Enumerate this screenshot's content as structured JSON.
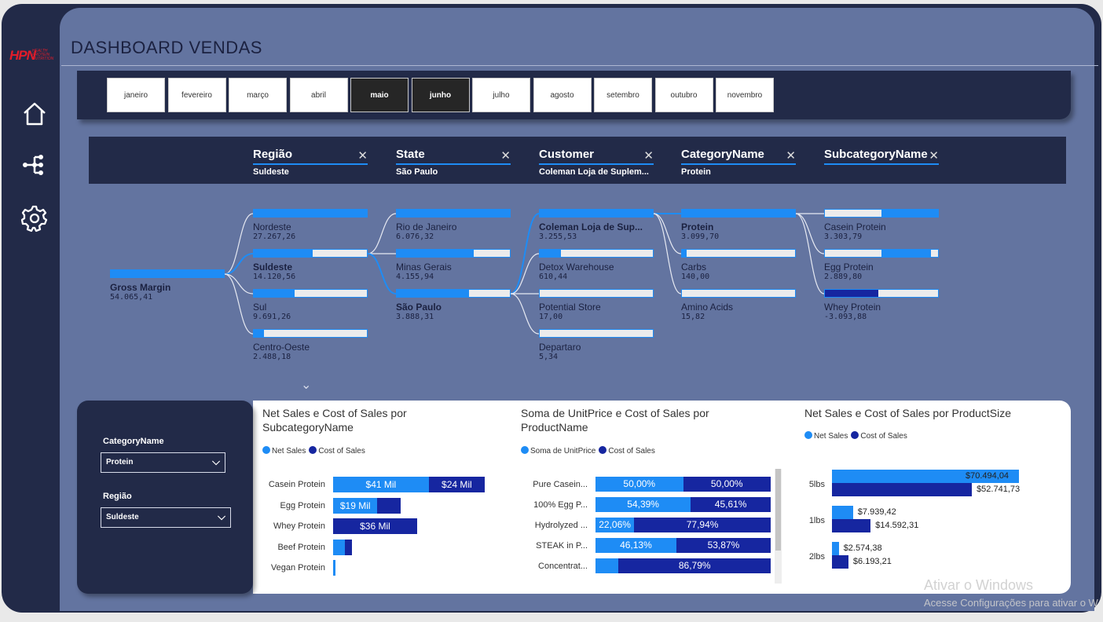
{
  "brand": {
    "logo_text": "HPN",
    "logo_sub": "HEALTH PROTEIN NUTRITION"
  },
  "title": "DASHBOARD VENDAS",
  "nav": [
    {
      "name": "home-icon"
    },
    {
      "name": "decomposition-tree-icon"
    },
    {
      "name": "gear-icon"
    }
  ],
  "months": [
    {
      "label": "janeiro",
      "selected": false
    },
    {
      "label": "fevereiro",
      "selected": false
    },
    {
      "label": "março",
      "selected": false
    },
    {
      "label": "abril",
      "selected": false
    },
    {
      "label": "maio",
      "selected": true
    },
    {
      "label": "junho",
      "selected": true
    },
    {
      "label": "julho",
      "selected": false
    },
    {
      "label": "agosto",
      "selected": false
    },
    {
      "label": "setembro",
      "selected": false
    },
    {
      "label": "outubro",
      "selected": false
    },
    {
      "label": "novembro",
      "selected": false
    }
  ],
  "tree": {
    "root": {
      "label": "Gross Margin",
      "value": "54.065,41",
      "fill": 1.0
    },
    "levels": [
      {
        "name": "Região",
        "value": "Suldeste",
        "nodes": [
          {
            "label": "Nordeste",
            "value": "27.267,26",
            "fill": 1.0,
            "selected": false
          },
          {
            "label": "Suldeste",
            "value": "14.120,56",
            "fill": 0.52,
            "selected": true
          },
          {
            "label": "Sul",
            "value": "9.691,26",
            "fill": 0.36,
            "selected": false
          },
          {
            "label": "Centro-Oeste",
            "value": "2.488,18",
            "fill": 0.09,
            "selected": false
          }
        ]
      },
      {
        "name": "State",
        "value": "São Paulo",
        "nodes": [
          {
            "label": "Rio de Janeiro",
            "value": "6.076,32",
            "fill": 1.0,
            "selected": false
          },
          {
            "label": "Minas Gerais",
            "value": "4.155,94",
            "fill": 0.68,
            "selected": false
          },
          {
            "label": "São Paulo",
            "value": "3.888,31",
            "fill": 0.64,
            "selected": true
          }
        ]
      },
      {
        "name": "Customer",
        "value": "Coleman Loja de Suplem...",
        "nodes": [
          {
            "label": "Coleman Loja de Sup...",
            "value": "3.255,53",
            "fill": 1.0,
            "selected": true
          },
          {
            "label": "Detox Warehouse",
            "value": "610,44",
            "fill": 0.19,
            "selected": false
          },
          {
            "label": "Potential Store",
            "value": "17,00",
            "fill": 0.0,
            "selected": false
          },
          {
            "label": "Departaro",
            "value": "5,34",
            "fill": 0.0,
            "selected": false
          }
        ]
      },
      {
        "name": "CategoryName",
        "value": "Protein",
        "nodes": [
          {
            "label": "Protein",
            "value": "3.099,70",
            "fill": 1.0,
            "selected": true
          },
          {
            "label": "Carbs",
            "value": "140,00",
            "fill": 0.04,
            "selected": false
          },
          {
            "label": "Amino Acids",
            "value": "15,82",
            "fill": 0.0,
            "selected": false
          }
        ]
      },
      {
        "name": "SubcategoryName",
        "value": "",
        "nodes": [
          {
            "label": "Casein Protein",
            "value": "3.303,79",
            "fill": 0.5,
            "selected": false,
            "negative": false
          },
          {
            "label": "Egg Protein",
            "value": "2.889,80",
            "fill": 0.44,
            "selected": false,
            "negative": false
          },
          {
            "label": "Whey Protein",
            "value": "-3.093,88",
            "fill": 0.47,
            "selected": false,
            "negative": true
          }
        ]
      }
    ],
    "expand_icon": "chevron-down-icon"
  },
  "filters": [
    {
      "label": "CategoryName",
      "value": "Protein"
    },
    {
      "label": "Região",
      "value": "Suldeste"
    }
  ],
  "colors": {
    "net": "#1e8cf5",
    "cost": "#1626a0",
    "panel": "#222a48",
    "bg": "#6374a0"
  },
  "chart_data": [
    {
      "type": "bar",
      "orientation": "horizontal-stacked",
      "title": "Net Sales e Cost of Sales por SubcategoryName",
      "legend": [
        "Net Sales",
        "Cost of Sales"
      ],
      "categories": [
        "Casein Protein",
        "Egg Protein",
        "Whey Protein",
        "Beef Protein",
        "Vegan Protein"
      ],
      "series": [
        {
          "name": "Net Sales",
          "values": [
            41,
            19,
            0,
            5,
            1
          ],
          "labels": [
            "$41 Mil",
            "$19 Mil",
            "",
            "",
            ""
          ]
        },
        {
          "name": "Cost of Sales",
          "values": [
            24,
            10,
            36,
            3,
            0
          ],
          "labels": [
            "$24 Mil",
            "",
            "$36 Mil",
            "",
            ""
          ]
        }
      ]
    },
    {
      "type": "bar",
      "orientation": "horizontal-100-stacked",
      "title": "Soma de UnitPrice e Cost of Sales por ProductName",
      "legend": [
        "Soma de UnitPrice",
        "Cost of Sales"
      ],
      "categories": [
        "Pure Casein...",
        "100% Egg P...",
        "Hydrolyzed ...",
        "STEAK in P...",
        "Concentrat..."
      ],
      "series": [
        {
          "name": "Soma de UnitPrice",
          "values": [
            50.0,
            54.39,
            22.06,
            46.13,
            13.21
          ],
          "labels": [
            "50,00%",
            "54,39%",
            "22,06%",
            "46,13%",
            ""
          ]
        },
        {
          "name": "Cost of Sales",
          "values": [
            50.0,
            45.61,
            77.94,
            53.87,
            86.79
          ],
          "labels": [
            "50,00%",
            "45,61%",
            "77,94%",
            "53,87%",
            "86,79%"
          ]
        }
      ]
    },
    {
      "type": "bar",
      "orientation": "horizontal-clustered",
      "title": "Net Sales e Cost of Sales por ProductSize",
      "legend": [
        "Net Sales",
        "Cost of Sales"
      ],
      "categories": [
        "5lbs",
        "1lbs",
        "2lbs"
      ],
      "series": [
        {
          "name": "Net Sales",
          "values": [
            70494.04,
            7939.42,
            2574.38
          ],
          "labels": [
            "$70.494,04",
            "$7.939,42",
            "$2.574,38"
          ]
        },
        {
          "name": "Cost of Sales",
          "values": [
            52741.73,
            14592.31,
            6193.21
          ],
          "labels": [
            "$52.741,73",
            "$14.592,31",
            "$6.193,21"
          ]
        }
      ]
    }
  ],
  "watermark": {
    "line1": "Ativar o Windows",
    "line2": "Acesse Configurações para ativar o Windows."
  }
}
